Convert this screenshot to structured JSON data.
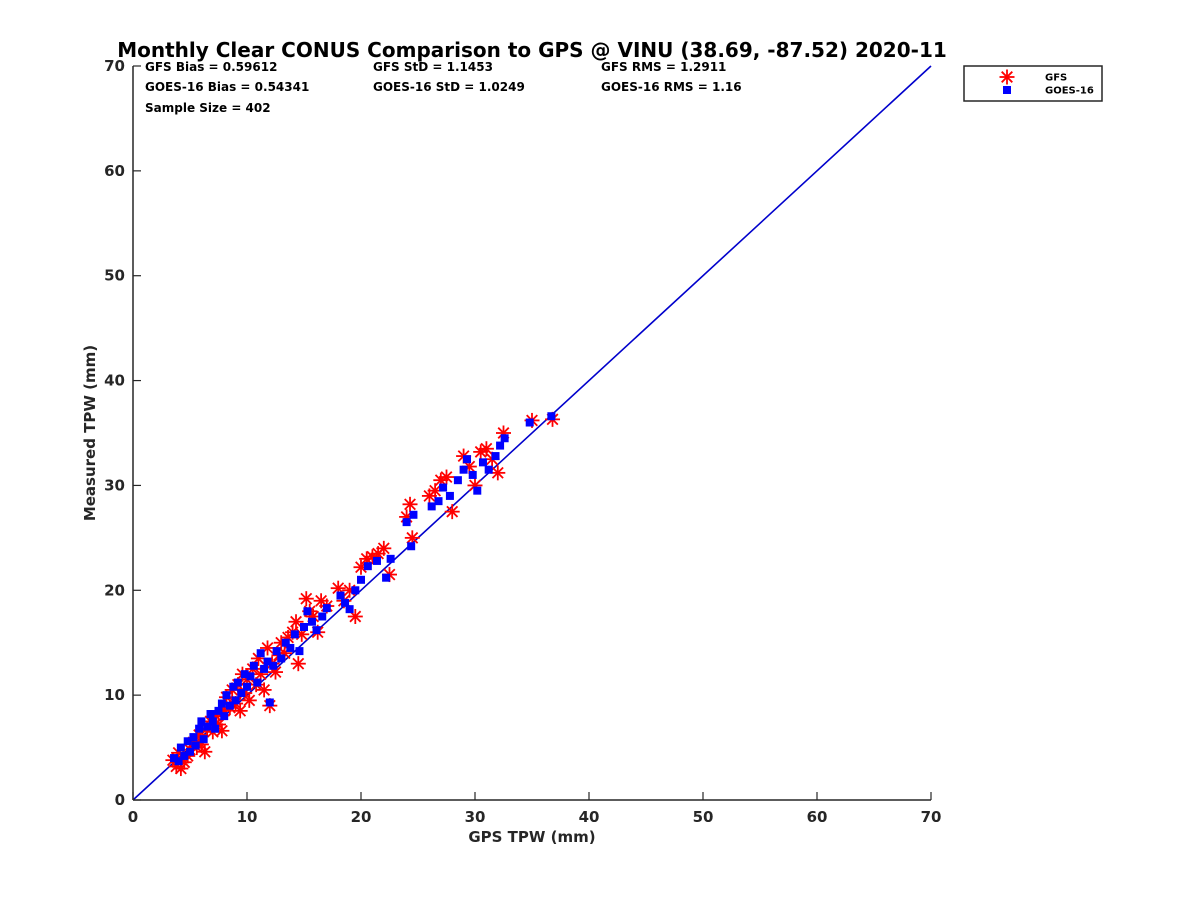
{
  "chart_data": {
    "type": "scatter",
    "title": "Monthly Clear CONUS Comparison to GPS @ VINU (38.69, -87.52) 2020-11",
    "xlabel": "GPS TPW (mm)",
    "ylabel": "Measured TPW (mm)",
    "xlim": [
      0,
      70
    ],
    "ylim": [
      0,
      70
    ],
    "x_ticks": [
      "0",
      "10",
      "20",
      "30",
      "40",
      "50",
      "60",
      "70"
    ],
    "y_ticks": [
      "0",
      "10",
      "20",
      "30",
      "40",
      "50",
      "60",
      "70"
    ],
    "grid": false,
    "legend_position": "top-right-outside",
    "stats": [
      [
        "GFS Bias = 0.59612",
        "GFS StD = 1.1453",
        "GFS RMS = 1.2911"
      ],
      [
        "GOES-16 Bias = 0.54341",
        "GOES-16 StD = 1.0249",
        "GOES-16 RMS = 1.16"
      ],
      [
        "Sample Size = 402",
        "",
        ""
      ]
    ],
    "reference_line": {
      "x": [
        0,
        70
      ],
      "y": [
        0,
        70
      ],
      "color": "#0000cc"
    },
    "series": [
      {
        "name": "GFS",
        "marker": "asterisk",
        "color": "#ff0000",
        "points": [
          [
            3.5,
            3.8
          ],
          [
            3.8,
            3.2
          ],
          [
            4.0,
            4.5
          ],
          [
            4.2,
            3.0
          ],
          [
            4.5,
            3.6
          ],
          [
            4.8,
            4.2
          ],
          [
            5.0,
            4.8
          ],
          [
            5.3,
            5.5
          ],
          [
            5.6,
            5.0
          ],
          [
            5.8,
            6.2
          ],
          [
            6.0,
            5.3
          ],
          [
            6.3,
            4.6
          ],
          [
            6.5,
            6.8
          ],
          [
            6.8,
            7.5
          ],
          [
            7.0,
            6.5
          ],
          [
            7.3,
            8.0
          ],
          [
            7.5,
            7.2
          ],
          [
            7.8,
            6.6
          ],
          [
            8.0,
            8.5
          ],
          [
            8.2,
            9.8
          ],
          [
            8.5,
            8.8
          ],
          [
            8.7,
            10.5
          ],
          [
            9.0,
            9.2
          ],
          [
            9.2,
            11.0
          ],
          [
            9.4,
            8.5
          ],
          [
            9.6,
            12.0
          ],
          [
            9.8,
            10.2
          ],
          [
            10.0,
            11.5
          ],
          [
            10.2,
            9.5
          ],
          [
            10.5,
            12.5
          ],
          [
            10.8,
            11.0
          ],
          [
            11.0,
            13.5
          ],
          [
            11.2,
            12.0
          ],
          [
            11.5,
            10.5
          ],
          [
            11.8,
            14.5
          ],
          [
            12.0,
            9.0
          ],
          [
            12.2,
            13.0
          ],
          [
            12.5,
            12.2
          ],
          [
            12.8,
            13.8
          ],
          [
            13.0,
            15.0
          ],
          [
            13.3,
            14.0
          ],
          [
            13.6,
            15.5
          ],
          [
            14.0,
            16.0
          ],
          [
            14.3,
            17.0
          ],
          [
            14.5,
            13.0
          ],
          [
            14.8,
            15.8
          ],
          [
            15.2,
            19.2
          ],
          [
            15.5,
            18.0
          ],
          [
            15.8,
            17.5
          ],
          [
            16.2,
            16.0
          ],
          [
            16.5,
            19.0
          ],
          [
            17.0,
            18.5
          ],
          [
            18.0,
            20.2
          ],
          [
            18.5,
            19.0
          ],
          [
            19.0,
            20.0
          ],
          [
            19.5,
            17.5
          ],
          [
            20.0,
            22.2
          ],
          [
            20.5,
            23.0
          ],
          [
            21.0,
            23.2
          ],
          [
            21.5,
            23.5
          ],
          [
            22.0,
            24.0
          ],
          [
            22.5,
            21.5
          ],
          [
            24.0,
            27.0
          ],
          [
            24.3,
            28.2
          ],
          [
            24.5,
            25.0
          ],
          [
            26.0,
            29.0
          ],
          [
            26.5,
            29.5
          ],
          [
            27.0,
            30.5
          ],
          [
            27.5,
            30.8
          ],
          [
            28.0,
            27.5
          ],
          [
            29.0,
            32.8
          ],
          [
            29.5,
            31.8
          ],
          [
            30.0,
            30.0
          ],
          [
            30.5,
            33.2
          ],
          [
            31.0,
            33.5
          ],
          [
            31.5,
            32.5
          ],
          [
            32.0,
            31.2
          ],
          [
            32.5,
            35.0
          ],
          [
            35.0,
            36.2
          ],
          [
            36.8,
            36.3
          ]
        ]
      },
      {
        "name": "GOES-16",
        "marker": "square",
        "color": "#0000ff",
        "points": [
          [
            3.6,
            4.0
          ],
          [
            4.0,
            3.7
          ],
          [
            4.2,
            5.0
          ],
          [
            4.5,
            4.2
          ],
          [
            4.8,
            5.6
          ],
          [
            5.0,
            4.6
          ],
          [
            5.3,
            6.0
          ],
          [
            5.5,
            5.2
          ],
          [
            5.8,
            6.8
          ],
          [
            6.0,
            7.5
          ],
          [
            6.2,
            5.8
          ],
          [
            6.5,
            7.0
          ],
          [
            6.8,
            8.2
          ],
          [
            7.0,
            7.5
          ],
          [
            7.2,
            6.8
          ],
          [
            7.5,
            8.5
          ],
          [
            7.8,
            9.2
          ],
          [
            8.0,
            8.0
          ],
          [
            8.2,
            10.0
          ],
          [
            8.5,
            9.0
          ],
          [
            8.8,
            10.8
          ],
          [
            9.0,
            9.5
          ],
          [
            9.2,
            11.2
          ],
          [
            9.5,
            10.2
          ],
          [
            9.8,
            12.0
          ],
          [
            10.0,
            10.8
          ],
          [
            10.3,
            11.8
          ],
          [
            10.6,
            12.8
          ],
          [
            10.9,
            11.2
          ],
          [
            11.2,
            14.0
          ],
          [
            11.5,
            12.5
          ],
          [
            11.8,
            13.2
          ],
          [
            12.0,
            9.3
          ],
          [
            12.3,
            12.8
          ],
          [
            12.6,
            14.2
          ],
          [
            13.0,
            13.5
          ],
          [
            13.4,
            15.0
          ],
          [
            13.8,
            14.5
          ],
          [
            14.2,
            15.8
          ],
          [
            14.6,
            14.2
          ],
          [
            15.0,
            16.5
          ],
          [
            15.3,
            18.0
          ],
          [
            15.7,
            17.0
          ],
          [
            16.1,
            16.2
          ],
          [
            16.6,
            17.5
          ],
          [
            17.0,
            18.3
          ],
          [
            18.2,
            19.5
          ],
          [
            18.6,
            18.8
          ],
          [
            19.0,
            18.2
          ],
          [
            19.5,
            20.0
          ],
          [
            20.0,
            21.0
          ],
          [
            20.6,
            22.3
          ],
          [
            21.4,
            22.8
          ],
          [
            22.2,
            21.2
          ],
          [
            22.6,
            23.0
          ],
          [
            24.0,
            26.5
          ],
          [
            24.4,
            24.2
          ],
          [
            24.6,
            27.2
          ],
          [
            26.2,
            28.0
          ],
          [
            26.8,
            28.5
          ],
          [
            27.2,
            29.8
          ],
          [
            27.8,
            29.0
          ],
          [
            28.5,
            30.5
          ],
          [
            29.0,
            31.5
          ],
          [
            29.3,
            32.5
          ],
          [
            29.8,
            31.0
          ],
          [
            30.2,
            29.5
          ],
          [
            30.7,
            32.2
          ],
          [
            31.2,
            31.5
          ],
          [
            31.8,
            32.8
          ],
          [
            32.2,
            33.8
          ],
          [
            32.6,
            34.5
          ],
          [
            34.8,
            36.0
          ],
          [
            36.7,
            36.6
          ]
        ]
      }
    ]
  }
}
